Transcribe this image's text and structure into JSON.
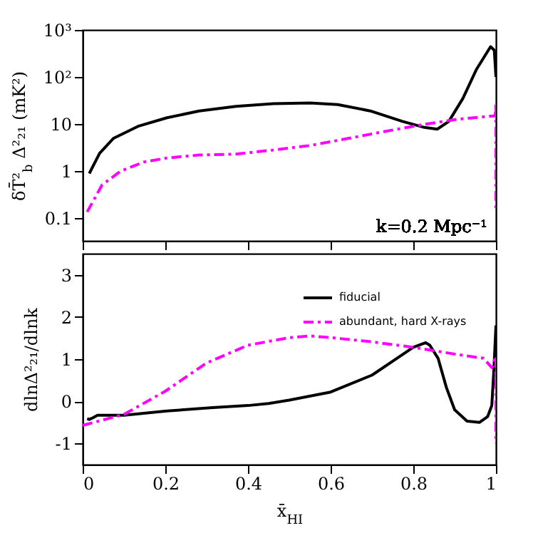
{
  "chart_data": [
    {
      "type": "line",
      "ylabel": "δT̄²$_{b}$ Δ²₂₁ (mK²)",
      "annotations": [
        "k=0.2 Mpc⁻¹"
      ],
      "log": "y",
      "xlim": [
        0,
        1
      ],
      "xticks": [
        0,
        0.2,
        0.4,
        0.6,
        0.8,
        1
      ],
      "ylim": [
        0.033,
        1000
      ],
      "yticks": [
        0.1,
        1,
        10,
        {
          "value": 100,
          "label": "10²"
        },
        {
          "value": 1000,
          "label": "10³"
        }
      ],
      "tick_labels": "y",
      "grid": false,
      "legend": false,
      "series": [
        {
          "color": "#000000",
          "line_style": "solid",
          "x": [
            0.016,
            0.041,
            0.075,
            0.136,
            0.204,
            0.282,
            0.371,
            0.461,
            0.55,
            0.617,
            0.696,
            0.774,
            0.824,
            0.858,
            0.886,
            0.92,
            0.953,
            0.987,
            0.996,
            1.0
          ],
          "values": [
            0.89,
            2.4,
            5.0,
            9.1,
            13.6,
            19,
            23.7,
            27,
            28,
            26,
            19,
            11.4,
            8.6,
            7.8,
            11.4,
            35,
            146,
            440,
            370,
            100
          ]
        },
        {
          "color": "#ff00ff",
          "line_style": "dashed",
          "x": [
            0.011,
            0.047,
            0.092,
            0.148,
            0.204,
            0.282,
            0.371,
            0.461,
            0.55,
            0.64,
            0.729,
            0.819,
            0.908,
            0.998,
            1.0,
            1.0
          ],
          "values": [
            0.136,
            0.51,
            1.0,
            1.56,
            1.9,
            2.2,
            2.3,
            2.8,
            3.5,
            4.9,
            6.9,
            9.6,
            12.7,
            15,
            28,
            0.15
          ]
        }
      ]
    },
    {
      "type": "line",
      "xlabel": "x̄$_{HI}$",
      "ylabel": "dlnΔ²₂₁/dlnk",
      "xlim": [
        0,
        1
      ],
      "xticks": [
        0,
        0.2,
        0.4,
        0.6,
        0.8,
        1
      ],
      "ylim": [
        -1.5,
        3.5
      ],
      "yticks": [
        -1,
        0,
        1,
        2,
        3
      ],
      "grid": false,
      "legend": "top right",
      "series": [
        {
          "name": "fiducial",
          "color": "#000000",
          "line_style": "solid",
          "x": [
            0.011,
            0.016,
            0.025,
            0.036,
            0.1,
            0.204,
            0.315,
            0.4,
            0.45,
            0.5,
            0.6,
            0.7,
            0.8,
            0.83,
            0.84,
            0.86,
            0.88,
            0.9,
            0.93,
            0.96,
            0.98,
            0.99,
            0.995,
            1.0
          ],
          "values": [
            -0.41,
            -0.43,
            -0.39,
            -0.33,
            -0.33,
            -0.23,
            -0.15,
            -0.1,
            -0.05,
            0.03,
            0.22,
            0.62,
            1.28,
            1.39,
            1.33,
            1.02,
            0.33,
            -0.2,
            -0.47,
            -0.5,
            -0.36,
            -0.1,
            0.75,
            1.8
          ]
        },
        {
          "name": "abundant, hard X-rays",
          "color": "#ff00ff",
          "line_style": "dashed",
          "x": [
            0.0,
            0.1,
            0.2,
            0.3,
            0.4,
            0.5,
            0.55,
            0.6,
            0.7,
            0.8,
            0.9,
            0.97,
            0.99,
            1.0,
            1.0
          ],
          "values": [
            -0.57,
            -0.31,
            0.24,
            0.91,
            1.33,
            1.51,
            1.55,
            1.51,
            1.41,
            1.28,
            1.12,
            1.02,
            0.8,
            1.07,
            -1.0
          ]
        }
      ]
    }
  ]
}
